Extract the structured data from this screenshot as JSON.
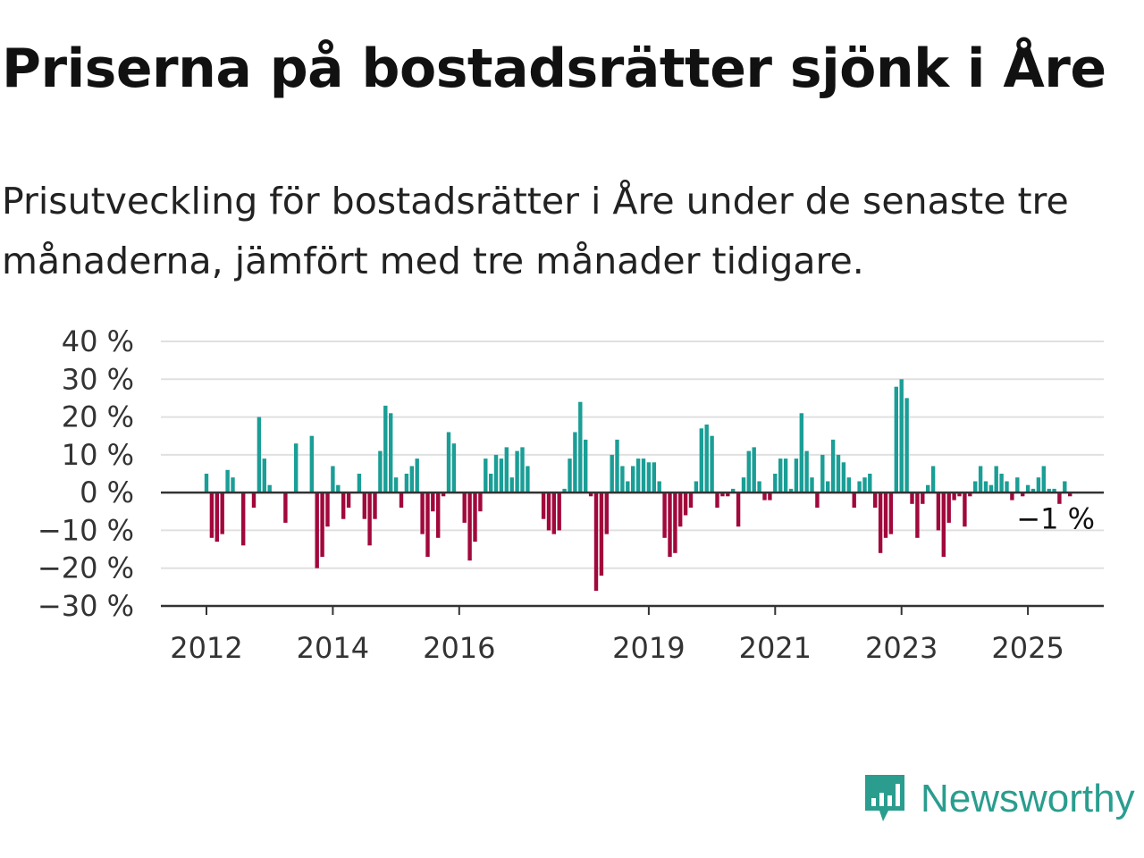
{
  "title": "Priserna på bostadsrätter sjönk i Åre",
  "subtitle": "Prisutveckling för bostadsrätter i Åre under de senaste tre månaderna, jämfört med tre månader tidigare.",
  "brand": {
    "name": "Newsworthy",
    "color": "#2a9d8f",
    "icon": "newsworthy-logo-icon"
  },
  "colors": {
    "positive": "#1a9e96",
    "negative": "#a1083c",
    "grid": "#e0e0e0",
    "axis": "#333333"
  },
  "chart_data": {
    "type": "bar",
    "xlabel": "",
    "ylabel": "",
    "ylim": [
      -30,
      40
    ],
    "yticks": [
      40,
      30,
      20,
      10,
      0,
      -10,
      -20,
      -30
    ],
    "ytick_labels": [
      "40 %",
      "30 %",
      "20 %",
      "10 %",
      "0 %",
      "−10 %",
      "−20 %",
      "−30 %"
    ],
    "xticks": [
      "2012",
      "2014",
      "2016",
      "2019",
      "2021",
      "2023",
      "2025"
    ],
    "grid": true,
    "start": "2012-01",
    "frequency": "monthly",
    "annotation": "−1 %",
    "values": [
      5,
      -12,
      -13,
      -11,
      6,
      4,
      null,
      -14,
      null,
      -4,
      20,
      9,
      2,
      null,
      null,
      -8,
      null,
      13,
      null,
      null,
      15,
      -20,
      -17,
      -9,
      7,
      2,
      -7,
      -4,
      null,
      5,
      -7,
      -14,
      -7,
      11,
      23,
      21,
      4,
      -4,
      5,
      7,
      9,
      -11,
      -17,
      -5,
      -12,
      -1,
      16,
      13,
      null,
      -8,
      -18,
      -13,
      -5,
      9,
      5,
      10,
      9,
      12,
      4,
      11,
      12,
      7,
      null,
      null,
      -7,
      -10,
      -11,
      -10,
      1,
      9,
      16,
      24,
      14,
      -1,
      -26,
      -22,
      -11,
      10,
      14,
      7,
      3,
      7,
      9,
      9,
      8,
      8,
      3,
      -12,
      -17,
      -16,
      -9,
      -6,
      -4,
      3,
      17,
      18,
      15,
      -4,
      -1,
      -1,
      1,
      -9,
      4,
      11,
      12,
      3,
      -2,
      -2,
      5,
      9,
      9,
      1,
      9,
      21,
      11,
      4,
      -4,
      10,
      3,
      14,
      10,
      8,
      4,
      -4,
      3,
      4,
      5,
      -4,
      -16,
      -12,
      -11,
      28,
      30,
      25,
      -3,
      -12,
      -3,
      2,
      7,
      -10,
      -17,
      -8,
      -2,
      -1,
      -9,
      -1,
      3,
      7,
      3,
      2,
      7,
      5,
      3,
      -2,
      4,
      -1,
      2,
      1,
      4,
      7,
      1,
      1,
      -3,
      3,
      -1
    ]
  }
}
